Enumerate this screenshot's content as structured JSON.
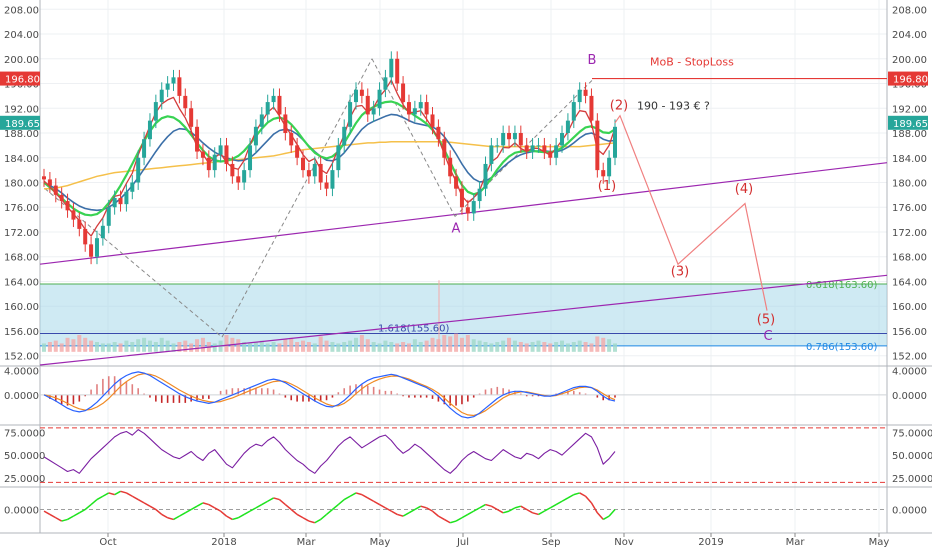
{
  "chart_data": {
    "type": "line",
    "subtype": "candlestick-with-indicators",
    "x_ticks": [
      "Oct",
      "2018",
      "Mar",
      "May",
      "Jul",
      "Sep",
      "Nov",
      "2019",
      "Mar",
      "May"
    ],
    "price_axis": {
      "ticks": [
        "152.00",
        "156.00",
        "160.00",
        "164.00",
        "168.00",
        "172.00",
        "176.00",
        "180.00",
        "184.00",
        "188.00",
        "192.00",
        "196.00",
        "200.00",
        "204.00",
        "208.00"
      ],
      "range": [
        150.5,
        209.5
      ],
      "scale": "linear"
    },
    "price_badges": [
      {
        "label": "196.80",
        "value": 196.8,
        "color": "#e53935"
      },
      {
        "label": "189.65",
        "value": 189.65,
        "color": "#26a69a"
      }
    ],
    "price_series_close": [
      180.5,
      179.5,
      178,
      177,
      175.5,
      174,
      172.5,
      170,
      168,
      171,
      173,
      176,
      177.5,
      176.5,
      178.5,
      180,
      184,
      187,
      190,
      193,
      195,
      196,
      197,
      194,
      192,
      189,
      185,
      184,
      182,
      184.5,
      186,
      183,
      181,
      180,
      182,
      186,
      189,
      191,
      193,
      194,
      191,
      188,
      186,
      184,
      182,
      181,
      183,
      180,
      179,
      182,
      186,
      189,
      193,
      195,
      194,
      191,
      192,
      195,
      197,
      200,
      196,
      193,
      191,
      192,
      193,
      191,
      189,
      187,
      184,
      181,
      179,
      176,
      175,
      177,
      179,
      183,
      186,
      186,
      188,
      187,
      188,
      186,
      185,
      186,
      186,
      185,
      184,
      186,
      188,
      190,
      193,
      195,
      194,
      190,
      182,
      181,
      184,
      189
    ],
    "sma_blue": [
      180,
      179.5,
      179,
      178.3,
      177.5,
      176.8,
      176.2,
      175.8,
      175.6,
      175.5,
      175.6,
      176,
      176.6,
      177.4,
      178.4,
      179.5,
      180.8,
      182.2,
      183.6,
      185,
      186.3,
      187.4,
      188.3,
      188.7,
      188.6,
      188.1,
      187.3,
      186.4,
      185.6,
      184.9,
      184.4,
      184,
      183.7,
      183.5,
      183.6,
      184,
      184.8,
      185.8,
      186.8,
      187.8,
      188.4,
      188.6,
      188.4,
      187.8,
      186.9,
      185.9,
      185,
      184.2,
      183.6,
      183.5,
      183.9,
      184.8,
      186,
      187.4,
      188.6,
      189.4,
      189.9,
      190.3,
      190.7,
      191,
      190.9,
      190.5,
      190,
      189.6,
      189.4,
      189.2,
      189,
      188.4,
      187.4,
      186.1,
      184.6,
      183,
      181.6,
      180.6,
      180.1,
      180.2,
      180.8,
      181.6,
      182.5,
      183.3,
      184,
      184.5,
      184.8,
      185,
      185.1,
      185.1,
      185,
      185,
      185.2,
      185.7,
      186.4,
      187.2,
      187.8,
      188,
      187.6,
      187,
      186.7,
      186.8
    ],
    "sma_green": [
      180,
      179.2,
      178.4,
      177.5,
      176.6,
      175.8,
      175.2,
      174.8,
      174.7,
      174.9,
      175.6,
      176.7,
      178,
      179.5,
      181.2,
      183,
      184.9,
      186.7,
      188.3,
      189.6,
      190.4,
      190.7,
      190.5,
      189.9,
      188.9,
      187.7,
      186.4,
      185.2,
      184.2,
      183.6,
      183.4,
      183.5,
      183.8,
      184.3,
      185.1,
      186.2,
      187.5,
      188.7,
      189.7,
      190.3,
      190.5,
      190.2,
      189.4,
      188.3,
      187,
      185.8,
      184.8,
      184.2,
      183.9,
      184.2,
      185,
      186.4,
      188,
      189.6,
      190.9,
      191.7,
      192.2,
      192.7,
      193,
      193.1,
      192.8,
      192.2,
      191.5,
      190.8,
      190.2,
      189.5,
      188.5,
      187.1,
      185.3,
      183.3,
      181.3,
      179.6,
      178.5,
      178.1,
      178.4,
      179.4,
      180.7,
      182.1,
      183.3,
      184.2,
      184.8,
      185,
      185.1,
      185.1,
      185,
      184.9,
      184.9,
      185.1,
      185.6,
      186.4,
      187.3,
      188.2,
      188.9,
      189.1,
      188.7,
      188.1,
      188,
      188.6
    ],
    "sma_orange": [
      179,
      179,
      179.1,
      179.3,
      179.5,
      179.8,
      180.1,
      180.4,
      180.7,
      181,
      181.2,
      181.4,
      181.6,
      181.7,
      181.8,
      181.9,
      182,
      182.1,
      182.2,
      182.3,
      182.4,
      182.5,
      182.6,
      182.7,
      182.8,
      182.9,
      183,
      183.1,
      183.2,
      183.3,
      183.4,
      183.5,
      183.6,
      183.7,
      183.8,
      183.9,
      184,
      184.1,
      184.2,
      184.3,
      184.5,
      184.7,
      184.9,
      185.1,
      185.3,
      185.4,
      185.5,
      185.6,
      185.7,
      185.8,
      185.9,
      186,
      186.1,
      186.2,
      186.3,
      186.4,
      186.4,
      186.5,
      186.5,
      186.6,
      186.6,
      186.6,
      186.6,
      186.6,
      186.6,
      186.6,
      186.6,
      186.6,
      186.6,
      186.5,
      186.4,
      186.3,
      186.2,
      186.1,
      186,
      185.9,
      185.8,
      185.8,
      185.8,
      185.8,
      185.8,
      185.8,
      185.8,
      185.8,
      185.8,
      185.8,
      185.8,
      185.8,
      185.8,
      185.8,
      185.8,
      185.8,
      185.9,
      186,
      186.1,
      186.2,
      186.3,
      186.4
    ],
    "volume_relative": [
      0.3,
      0.35,
      0.4,
      0.3,
      0.5,
      0.45,
      0.6,
      0.5,
      0.4,
      0.35,
      0.3,
      0.3,
      0.35,
      0.3,
      0.4,
      0.35,
      0.45,
      0.5,
      0.4,
      0.35,
      0.5,
      0.4,
      0.3,
      0.35,
      0.4,
      0.3,
      0.45,
      0.5,
      0.35,
      0.3,
      0.4,
      0.6,
      0.5,
      0.45,
      0.35,
      0.3,
      0.35,
      0.4,
      0.3,
      0.35,
      0.3,
      0.45,
      0.5,
      0.35,
      0.4,
      0.35,
      0.3,
      0.55,
      0.4,
      0.35,
      0.3,
      0.35,
      0.4,
      0.5,
      0.6,
      0.45,
      0.35,
      0.3,
      0.4,
      0.35,
      0.3,
      0.35,
      0.3,
      0.45,
      0.35,
      0.4,
      0.5,
      0.45,
      0.6,
      0.55,
      0.65,
      0.5,
      0.6,
      0.45,
      0.4,
      0.35,
      0.3,
      0.35,
      0.4,
      0.5,
      0.4,
      0.35,
      0.3,
      0.35,
      0.4,
      0.35,
      0.3,
      0.35,
      0.4,
      0.3,
      0.35,
      0.4,
      0.35,
      0.3,
      0.55,
      0.5,
      0.45,
      0.3
    ],
    "fib_zone": {
      "from": 153.6,
      "to": 163.6,
      "color": "#a8d8ea"
    },
    "fib_levels": [
      {
        "label": "0.618(163.60)",
        "value": 163.6,
        "color": "#4caf50"
      },
      {
        "label": "1.618(155.60)",
        "value": 155.6,
        "color": "#3949ab"
      },
      {
        "label": "0.786(153.60)",
        "value": 153.6,
        "color": "#1e88e5"
      }
    ],
    "stoploss": {
      "label": "MoB - StopLoss",
      "value": 196.8,
      "color": "#e53935"
    },
    "trend_lines_purple": [
      {
        "from": [
          0,
          166.8
        ],
        "to": [
          1,
          183.2
        ]
      },
      {
        "from": [
          0,
          150.5
        ],
        "to": [
          1,
          165
        ]
      }
    ],
    "wave_labels": {
      "abc": [
        {
          "label": "A",
          "value": 174.5
        },
        {
          "label": "B",
          "value": 198.5
        },
        {
          "label": "C",
          "value": 155.5
        }
      ],
      "impulse": [
        {
          "label": "(1)",
          "value": 178.8
        },
        {
          "label": "(2)",
          "value": 191.8
        },
        {
          "label": "(3)",
          "value": 165
        },
        {
          "label": "(4)",
          "value": 178.3
        },
        {
          "label": "(5)",
          "value": 157.2
        }
      ],
      "target_text": "190 - 193 € ?"
    },
    "projection_path": [
      {
        "idx": 0,
        "value": 190.8
      },
      {
        "idx": 1,
        "value": 166.8
      },
      {
        "idx": 2,
        "value": 176.6
      },
      {
        "idx": 3,
        "value": 159.3
      }
    ],
    "macd": {
      "ticks": [
        "4.0000",
        "0.0000"
      ],
      "tick_values": [
        4,
        0
      ],
      "range": [
        -4.8,
        4.6
      ],
      "macd_line": [
        0,
        -0.5,
        -1,
        -1.6,
        -2.2,
        -2.6,
        -2.8,
        -2.6,
        -2,
        -1.2,
        -0.2,
        0.8,
        1.8,
        2.6,
        3.2,
        3.6,
        3.8,
        3.6,
        3.2,
        2.6,
        2,
        1.4,
        0.8,
        0.2,
        -0.3,
        -0.7,
        -1,
        -1.2,
        -1.4,
        -1.2,
        -0.8,
        -0.4,
        0,
        0.4,
        0.8,
        1.2,
        1.6,
        2,
        2.4,
        2.6,
        2.4,
        2,
        1.4,
        0.8,
        0.2,
        -0.4,
        -1,
        -1.5,
        -1.9,
        -2,
        -1.6,
        -0.9,
        0,
        1,
        1.8,
        2.4,
        2.8,
        3,
        3.2,
        3.4,
        3.2,
        2.8,
        2.4,
        2,
        1.6,
        1.2,
        0.6,
        -0.2,
        -1.2,
        -2.2,
        -3,
        -3.6,
        -3.8,
        -3.6,
        -3,
        -2.2,
        -1.4,
        -0.6,
        0,
        0.4,
        0.6,
        0.6,
        0.4,
        0.2,
        0,
        -0.2,
        -0.2,
        0,
        0.4,
        0.8,
        1.2,
        1.4,
        1.4,
        1.2,
        0.6,
        -0.2,
        -0.8,
        -1
      ],
      "signal_line": [
        0,
        -0.2,
        -0.5,
        -0.9,
        -1.4,
        -1.9,
        -2.3,
        -2.5,
        -2.4,
        -2,
        -1.4,
        -0.6,
        0.4,
        1.4,
        2.2,
        2.8,
        3.3,
        3.5,
        3.4,
        3.1,
        2.6,
        2,
        1.4,
        0.8,
        0.3,
        -0.2,
        -0.6,
        -0.9,
        -1.1,
        -1.2,
        -1.1,
        -0.8,
        -0.5,
        -0.1,
        0.3,
        0.7,
        1.1,
        1.5,
        1.9,
        2.2,
        2.3,
        2.2,
        1.8,
        1.3,
        0.7,
        0.1,
        -0.5,
        -1,
        -1.5,
        -1.8,
        -1.8,
        -1.4,
        -0.7,
        0.2,
        1,
        1.7,
        2.2,
        2.6,
        2.9,
        3.1,
        3.1,
        2.9,
        2.6,
        2.2,
        1.8,
        1.4,
        0.9,
        0.3,
        -0.5,
        -1.4,
        -2.2,
        -2.9,
        -3.3,
        -3.4,
        -3.1,
        -2.6,
        -1.9,
        -1.2,
        -0.5,
        0,
        0.3,
        0.5,
        0.5,
        0.3,
        0.1,
        -0.1,
        -0.2,
        -0.1,
        0.2,
        0.5,
        0.9,
        1.2,
        1.3,
        1.2,
        0.8,
        0.2,
        -0.4,
        -0.8
      ]
    },
    "rsi": {
      "ticks": [
        "75.0000",
        "50.0000",
        "25.0000"
      ],
      "tick_values": [
        75,
        50,
        25
      ],
      "range": [
        16,
        82
      ],
      "overbought": 80,
      "oversold": 20,
      "values": [
        48,
        44,
        40,
        36,
        32,
        34,
        30,
        38,
        46,
        52,
        58,
        64,
        70,
        74,
        76,
        72,
        78,
        74,
        68,
        62,
        56,
        52,
        48,
        46,
        50,
        54,
        48,
        44,
        52,
        56,
        48,
        40,
        36,
        44,
        52,
        58,
        62,
        60,
        66,
        70,
        64,
        56,
        50,
        44,
        40,
        34,
        30,
        38,
        44,
        52,
        60,
        66,
        70,
        64,
        58,
        62,
        66,
        70,
        72,
        66,
        58,
        52,
        56,
        62,
        58,
        52,
        46,
        40,
        34,
        30,
        36,
        44,
        50,
        54,
        50,
        46,
        44,
        50,
        56,
        52,
        48,
        46,
        52,
        50,
        46,
        52,
        56,
        54,
        50,
        56,
        62,
        68,
        74,
        70,
        58,
        40,
        46,
        54
      ],
      "color": "#7b1fa2"
    },
    "oscillator": {
      "ticks": [
        "0.0000"
      ],
      "tick_values": [
        0
      ],
      "range": [
        -13,
        13
      ],
      "values": [
        -1,
        -3,
        -5,
        -7,
        -6,
        -4,
        -2,
        0,
        3,
        6,
        8,
        10,
        9,
        11,
        10,
        8,
        6,
        4,
        2,
        0,
        -3,
        -5,
        -6,
        -4,
        -2,
        0,
        2,
        4,
        3,
        1,
        -1,
        -4,
        -6,
        -5,
        -3,
        -1,
        1,
        3,
        5,
        7,
        6,
        3,
        0,
        -3,
        -5,
        -7,
        -8,
        -6,
        -3,
        0,
        3,
        6,
        8,
        10,
        9,
        7,
        5,
        3,
        1,
        -1,
        -3,
        -4,
        -2,
        0,
        2,
        1,
        -1,
        -4,
        -6,
        -8,
        -7,
        -5,
        -3,
        -1,
        1,
        3,
        2,
        0,
        -2,
        -1,
        1,
        2,
        0,
        -2,
        -3,
        -1,
        1,
        3,
        5,
        7,
        9,
        10,
        8,
        4,
        -2,
        -6,
        -4,
        0
      ],
      "color_up": "#1de31d",
      "color_down": "#e53935"
    },
    "colors": {
      "bull": "#26a69a",
      "bear": "#e53935",
      "sma_blue": "#3b6fa8",
      "sma_green": "#39d353",
      "sma_red": "#d43c3c",
      "sma_orange": "#f5c04a",
      "purple": "#9c27b0",
      "fib_zone": "#a8d8ea",
      "wave_purple": "#9c27b0",
      "wave_red": "#d32f2f"
    }
  }
}
